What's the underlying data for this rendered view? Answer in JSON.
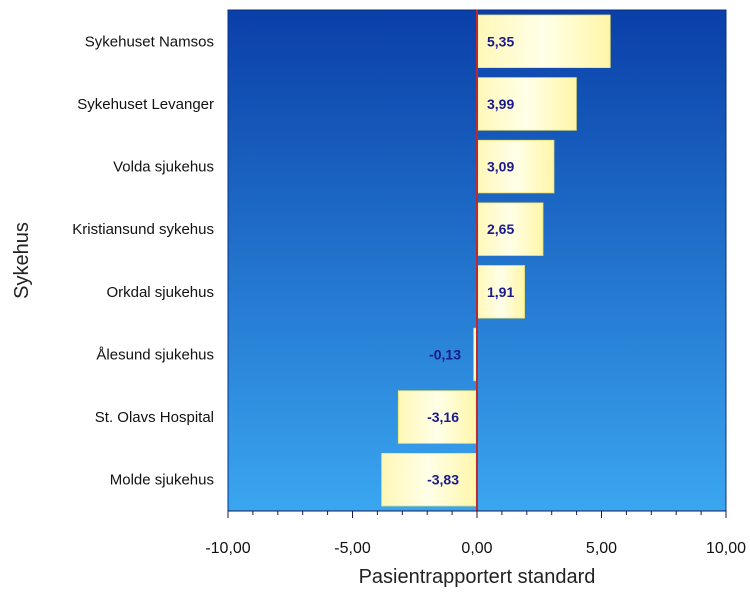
{
  "chart_data": {
    "type": "bar",
    "orientation": "horizontal",
    "categories": [
      "Sykehuset Namsos",
      "Sykehuset Levanger",
      "Volda sjukehus",
      "Kristiansund sykehus",
      "Orkdal sjukehus",
      "Ålesund sjukehus",
      "St. Olavs Hospital",
      "Molde sjukehus"
    ],
    "values": [
      5.35,
      3.99,
      3.09,
      2.65,
      1.91,
      -0.13,
      -3.16,
      -3.83
    ],
    "data_labels": [
      "5,35",
      "3,99",
      "3,09",
      "2,65",
      "1,91",
      "-0,13",
      "-3,16",
      "-3,83"
    ],
    "xlabel": "Pasientrapportert standard",
    "ylabel": "Sykehus",
    "xlim": [
      -10,
      10
    ],
    "xticks": [
      -10,
      -5,
      0,
      5,
      10
    ],
    "xtick_labels": [
      "-10,00",
      "-5,00",
      "0,00",
      "5,00",
      "10,00"
    ],
    "grid": false,
    "colors": {
      "plot_bg_top": "#0a3fa8",
      "plot_bg_bottom": "#3aa6f0",
      "bar_fill": "#fffbd0",
      "bar_edge": "#e8e070",
      "zero_line": "#c0282f",
      "data_label": "#1a1a8c"
    }
  }
}
